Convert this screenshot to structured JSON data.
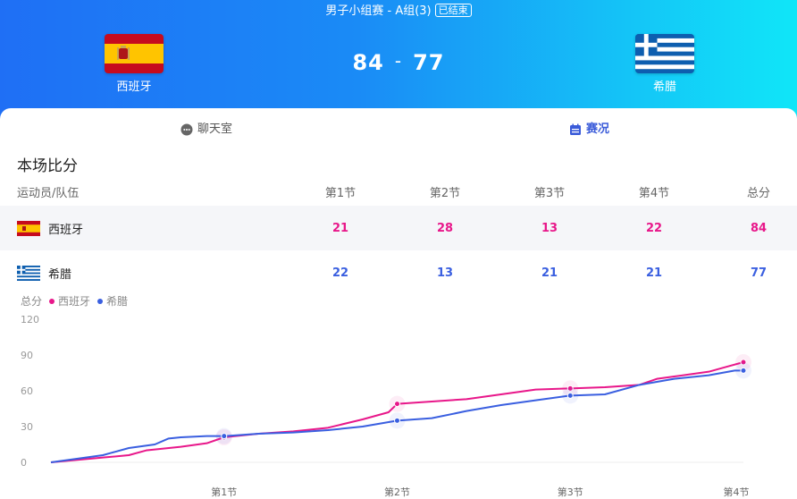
{
  "header": {
    "title": "男子小组赛 - A组(3)",
    "status_badge": "已结束",
    "home": {
      "name": "西班牙",
      "flag": "spain-flag-icon",
      "score": "84"
    },
    "away": {
      "name": "希腊",
      "flag": "greece-flag-icon",
      "score": "77"
    },
    "separator": "-"
  },
  "tabs": [
    {
      "label": "聊天室",
      "icon": "chat-bubble-icon",
      "active": false
    },
    {
      "label": "赛况",
      "icon": "calendar-icon",
      "active": true
    }
  ],
  "scoreboard": {
    "title": "本场比分",
    "headers": [
      "运动员/队伍",
      "第1节",
      "第2节",
      "第3节",
      "第4节",
      "总分"
    ],
    "rows": [
      {
        "team": "西班牙",
        "flag": "spain-flag-icon",
        "scores": [
          "21",
          "28",
          "13",
          "22",
          "84"
        ]
      },
      {
        "team": "希腊",
        "flag": "greece-flag-icon",
        "scores": [
          "22",
          "13",
          "21",
          "21",
          "77"
        ]
      }
    ]
  },
  "colors": {
    "spain": "#e8178a",
    "greece": "#3a5fe0"
  },
  "chart_data": {
    "type": "line",
    "title": "",
    "legend_label": "总分",
    "legend_placement": "top-left",
    "ylabel": "",
    "ylim": [
      0,
      120
    ],
    "yticks": [
      0,
      30,
      60,
      90,
      120
    ],
    "xticks": [
      "第1节",
      "第2节",
      "第3节",
      "第4节"
    ],
    "xlim": [
      0,
      4
    ],
    "grid": false,
    "series": [
      {
        "name": "西班牙",
        "color": "#e8178a",
        "x": [
          0,
          0.3,
          0.45,
          0.55,
          0.75,
          0.9,
          1.0,
          1.2,
          1.4,
          1.6,
          1.8,
          1.95,
          2.0,
          2.2,
          2.4,
          2.6,
          2.8,
          3.0,
          3.2,
          3.4,
          3.5,
          3.6,
          3.8,
          3.9,
          4.0
        ],
        "y": [
          0,
          4,
          6,
          10,
          13,
          16,
          21,
          24,
          26,
          29,
          36,
          42,
          49,
          51,
          53,
          57,
          61,
          62,
          63,
          65,
          70,
          72,
          76,
          80,
          84
        ]
      },
      {
        "name": "希腊",
        "color": "#3a5fe0",
        "x": [
          0,
          0.3,
          0.35,
          0.45,
          0.6,
          0.68,
          0.75,
          0.9,
          1.0,
          1.2,
          1.4,
          1.6,
          1.8,
          2.0,
          2.2,
          2.4,
          2.6,
          2.8,
          3.0,
          3.2,
          3.4,
          3.6,
          3.8,
          3.95,
          4.0
        ],
        "y": [
          0,
          6,
          8,
          12,
          15,
          20,
          21,
          22,
          22,
          24,
          25,
          27,
          30,
          35,
          37,
          43,
          48,
          52,
          56,
          57,
          65,
          70,
          73,
          77,
          77
        ]
      }
    ]
  }
}
